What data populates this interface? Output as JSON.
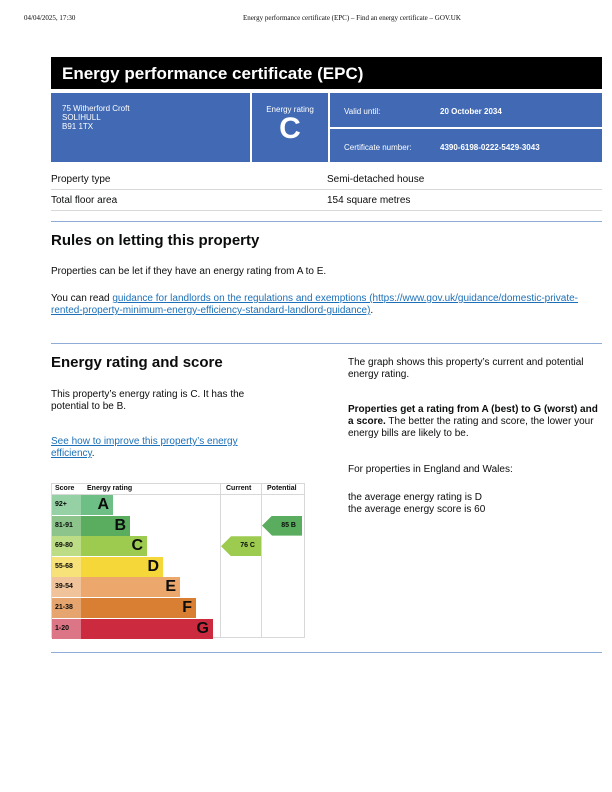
{
  "browser_header": {
    "timestamp": "04/04/2025, 17:30",
    "page_title": "Energy performance certificate (EPC) – Find an energy certificate – GOV.UK"
  },
  "title": "Energy performance certificate (EPC)",
  "address": {
    "line1": "75 Witherford Croft",
    "line2": "SOLIHULL",
    "line3": "B91 1TX"
  },
  "rating_box": {
    "label": "Energy rating",
    "value": "C"
  },
  "valid": {
    "label": "Valid until:",
    "value": "20 October 2034"
  },
  "certificate": {
    "label": "Certificate number:",
    "value": "4390-6198-0222-5429-3043"
  },
  "property": [
    {
      "label": "Property type",
      "value": "Semi-detached house"
    },
    {
      "label": "Total floor area",
      "value": "154 square metres"
    }
  ],
  "letting": {
    "heading": "Rules on letting this property",
    "p1": "Properties can be let if they have an energy rating from A to E.",
    "p2_prefix": "You can read ",
    "link": "guidance for landlords on the regulations and exemptions (https://www.gov.uk/guidance/domestic-private-rented-property-minimum-energy-efficiency-standard-landlord-guidance)",
    "p2_suffix": "."
  },
  "score_section": {
    "heading": "Energy rating and score",
    "p1": "This property’s energy rating is C. It has the potential to be B.",
    "link": "See how to improve this property’s energy efficiency",
    "link_suffix": ".",
    "graph_text": "The graph shows this property’s current and potential energy rating.",
    "bold_text": "Properties get a rating from A (best) to G (worst) and a score.",
    "rest_text": " The better the rating and score, the lower your energy bills are likely to be.",
    "avg_intro": "For properties in England and Wales:",
    "avg_rating": "the average energy rating is D",
    "avg_score": "the average energy score is 60"
  },
  "chart_data": {
    "type": "table",
    "headers": [
      "Score",
      "Energy rating",
      "Current",
      "Potential"
    ],
    "bands": [
      {
        "score": "92+",
        "letter": "A",
        "color": "#6dbf85",
        "light": "#95d1a4"
      },
      {
        "score": "81-91",
        "letter": "B",
        "color": "#5aad5e",
        "light": "#8cc48c"
      },
      {
        "score": "69-80",
        "letter": "C",
        "color": "#9dcb50",
        "light": "#bcdc86"
      },
      {
        "score": "55-68",
        "letter": "D",
        "color": "#f5d73a",
        "light": "#f7e27a"
      },
      {
        "score": "39-54",
        "letter": "E",
        "color": "#eba76c",
        "light": "#f1c39a"
      },
      {
        "score": "21-38",
        "letter": "F",
        "color": "#d97f34",
        "light": "#e6a46f"
      },
      {
        "score": "1-20",
        "letter": "G",
        "color": "#cc2a3f",
        "light": "#dc7585"
      }
    ],
    "current": {
      "score": 76,
      "letter": "C",
      "label": "76  C",
      "color": "#9dcb50"
    },
    "potential": {
      "score": 85,
      "letter": "B",
      "label": "85  B",
      "color": "#5aad5e"
    }
  }
}
